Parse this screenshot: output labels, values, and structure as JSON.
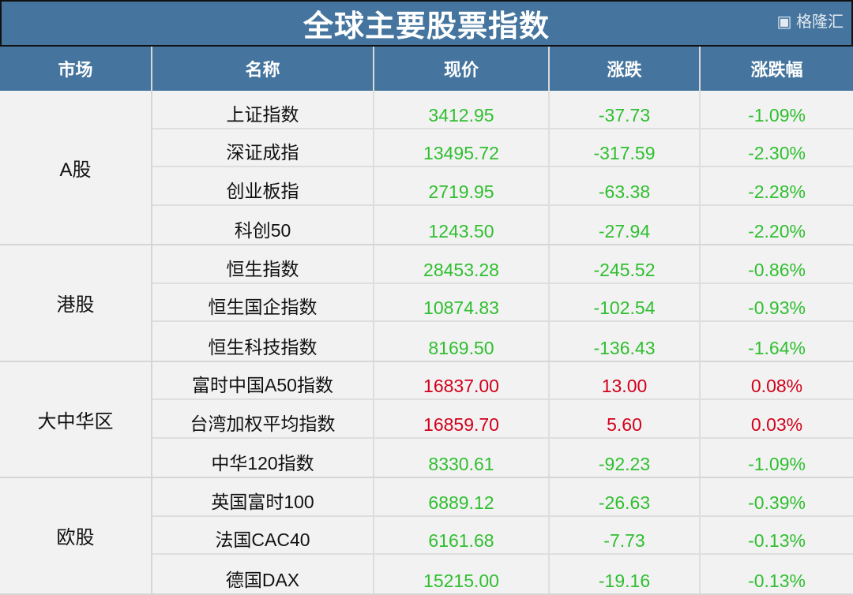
{
  "title": "全球主要股票指数",
  "headers": [
    "市场",
    "名称",
    "现价",
    "涨跌",
    "涨跌幅"
  ],
  "colors": {
    "header_bg": "#45759e",
    "up": "#d2001a",
    "down": "#2fbf2f"
  },
  "groups": [
    {
      "market": "A股",
      "rows": [
        {
          "name": "上证指数",
          "price": "3412.95",
          "change": "-37.73",
          "pct": "-1.09%",
          "dir": "down"
        },
        {
          "name": "深证成指",
          "price": "13495.72",
          "change": "-317.59",
          "pct": "-2.30%",
          "dir": "down"
        },
        {
          "name": "创业板指",
          "price": "2719.95",
          "change": "-63.38",
          "pct": "-2.28%",
          "dir": "down"
        },
        {
          "name": "科创50",
          "price": "1243.50",
          "change": "-27.94",
          "pct": "-2.20%",
          "dir": "down"
        }
      ]
    },
    {
      "market": "港股",
      "rows": [
        {
          "name": "恒生指数",
          "price": "28453.28",
          "change": "-245.52",
          "pct": "-0.86%",
          "dir": "down"
        },
        {
          "name": "恒生国企指数",
          "price": "10874.83",
          "change": "-102.54",
          "pct": "-0.93%",
          "dir": "down"
        },
        {
          "name": "恒生科技指数",
          "price": "8169.50",
          "change": "-136.43",
          "pct": "-1.64%",
          "dir": "down"
        }
      ]
    },
    {
      "market": "大中华区",
      "rows": [
        {
          "name": "富时中国A50指数",
          "price": "16837.00",
          "change": "13.00",
          "pct": "0.08%",
          "dir": "up"
        },
        {
          "name": "台湾加权平均指数",
          "price": "16859.70",
          "change": "5.60",
          "pct": "0.03%",
          "dir": "up"
        },
        {
          "name": "中华120指数",
          "price": "8330.61",
          "change": "-92.23",
          "pct": "-1.09%",
          "dir": "down"
        }
      ]
    },
    {
      "market": "欧股",
      "rows": [
        {
          "name": "英国富时100",
          "price": "6889.12",
          "change": "-26.63",
          "pct": "-0.39%",
          "dir": "down"
        },
        {
          "name": "法国CAC40",
          "price": "6161.68",
          "change": "-7.73",
          "pct": "-0.13%",
          "dir": "down"
        },
        {
          "name": "德国DAX",
          "price": "15215.00",
          "change": "-19.16",
          "pct": "-0.13%",
          "dir": "down"
        }
      ]
    }
  ],
  "watermark": "格隆汇"
}
